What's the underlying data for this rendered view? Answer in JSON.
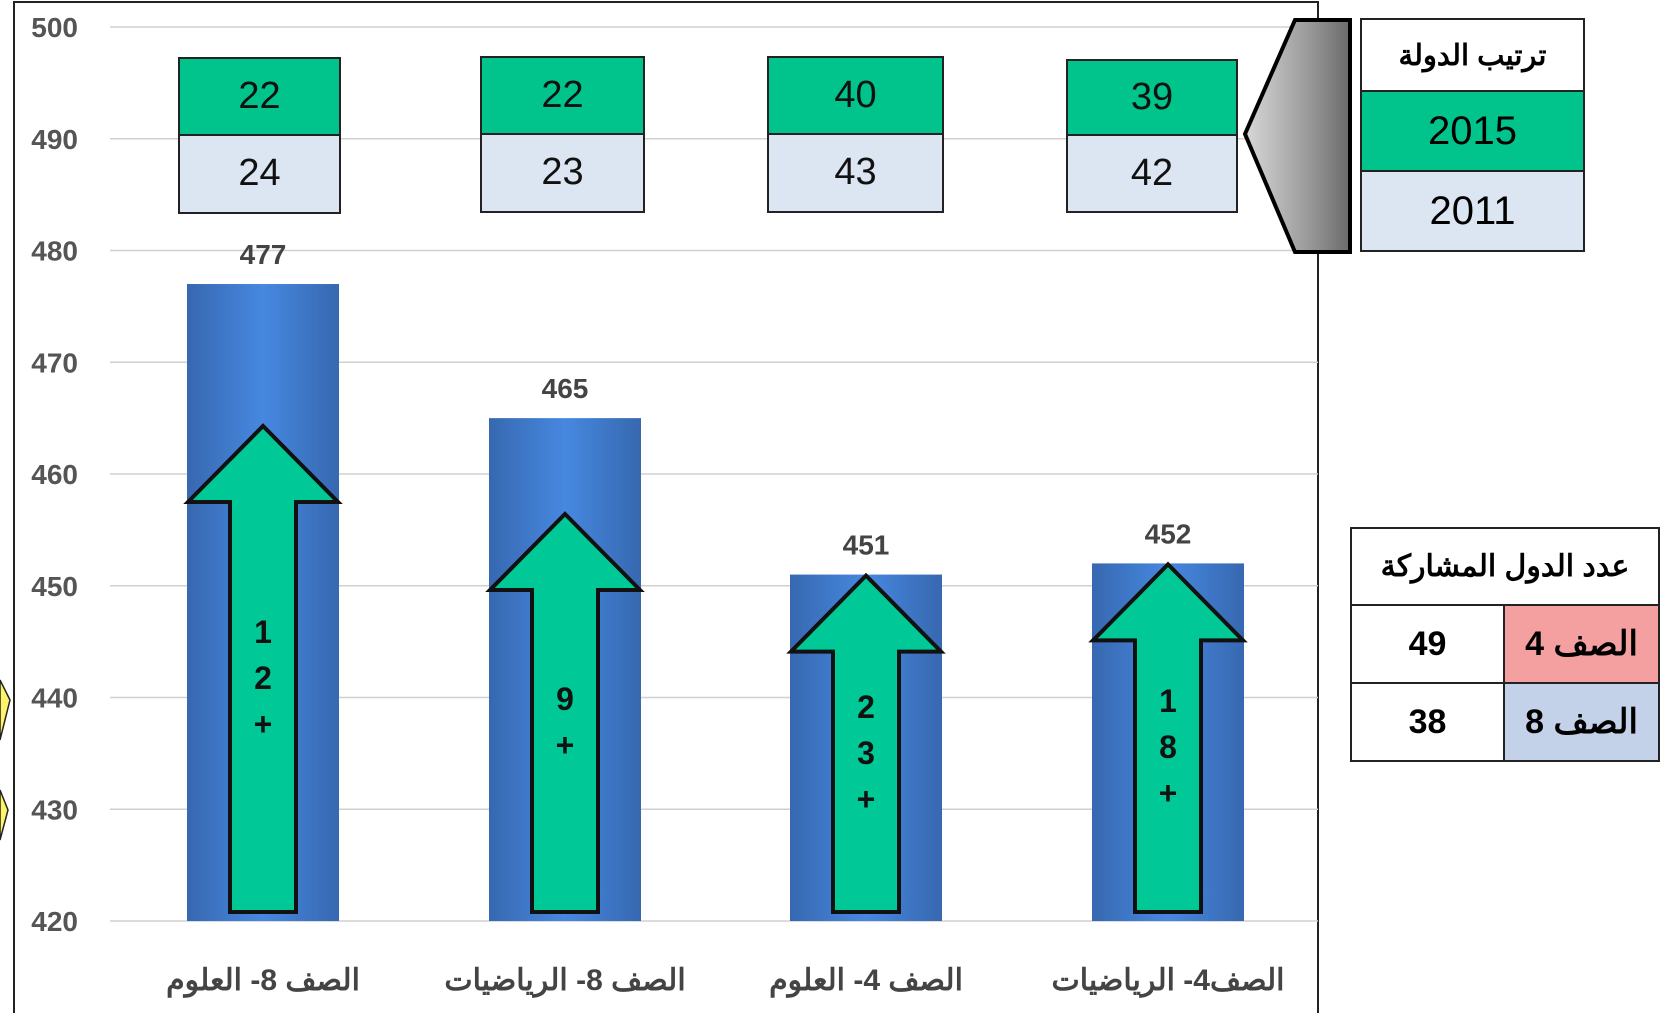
{
  "chart_data": {
    "type": "bar",
    "categories": [
      "الصف 8- العلوم",
      "الصف 8- الرياضيات",
      "الصف 4- العلوم",
      "الصف4- الرياضيات"
    ],
    "values": [
      477,
      465,
      451,
      452
    ],
    "improvement": [
      "12+",
      "9+",
      "23+",
      "18+"
    ],
    "ylim": [
      420,
      500
    ],
    "yticks": [
      420,
      430,
      440,
      450,
      460,
      470,
      480,
      490,
      500
    ],
    "rank_2015": [
      "22",
      "22",
      "40",
      "39"
    ],
    "rank_2011": [
      "24",
      "23",
      "43",
      "42"
    ],
    "grid": true
  },
  "rank_legend": {
    "title": "ترتيب الدولة",
    "year_top": "2015",
    "year_bottom": "2011"
  },
  "participants": {
    "title": "عدد الدول المشاركة",
    "rows": [
      {
        "grade": "الصف 4",
        "count": "49",
        "color": "#f4a0a0"
      },
      {
        "grade": "الصف 8",
        "count": "38",
        "color": "#c3d2e8"
      }
    ]
  },
  "colors": {
    "bar": "#3f7fd6",
    "arrow": "#00c896",
    "rank_top": "#00c48c",
    "rank_bottom": "#dce5f2"
  }
}
